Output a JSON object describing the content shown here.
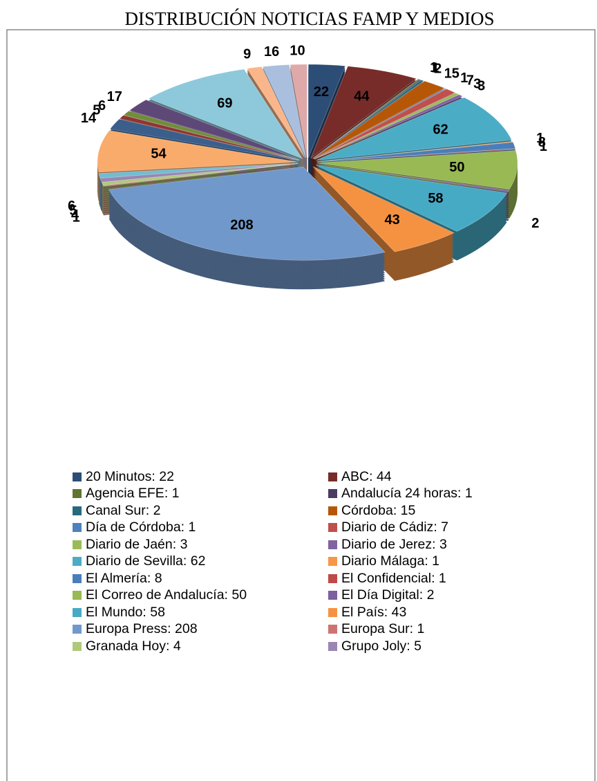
{
  "chart_data": {
    "type": "pie",
    "title": "DISTRIBUCIÓN NOTICIAS FAMP Y MEDIOS",
    "categories": [
      "20 Minutos",
      "ABC",
      "Agencia EFE",
      "Andalucía 24 horas",
      "Canal Sur",
      "Córdoba",
      "Día de Córdoba",
      "Diario de Cádiz",
      "Diario de Jaén",
      "Diario de Jerez",
      "Diario de Sevilla",
      "Diario Málaga",
      "El Almería",
      "El Confidencial",
      "El Correo de Andalucía",
      "El Día Digital",
      "El Mundo",
      "El País",
      "Europa Press",
      "Europa Sur",
      "Granada Hoy",
      "Grupo Joly",
      null,
      null,
      null,
      null,
      null,
      null,
      null,
      null,
      null,
      null
    ],
    "values": [
      22,
      44,
      1,
      1,
      2,
      15,
      1,
      7,
      3,
      3,
      62,
      1,
      8,
      1,
      50,
      2,
      58,
      43,
      208,
      1,
      4,
      5,
      6,
      54,
      14,
      5,
      6,
      17,
      69,
      9,
      16,
      10
    ],
    "colors": [
      "#2c4d75",
      "#772c2a",
      "#5f7530",
      "#4d3b62",
      "#276a7c",
      "#b65708",
      "#4f81bd",
      "#c0504d",
      "#9bbb59",
      "#8064a2",
      "#4bacc6",
      "#f79646",
      "#4a7ebb",
      "#be4b48",
      "#98b954",
      "#7d60a0",
      "#46aac5",
      "#f59242",
      "#7198cb",
      "#cd7472",
      "#afc97b",
      "#9a85b5",
      "#70bdd2",
      "#f9ab6c",
      "#3a5f8c",
      "#8f3533",
      "#728c3a",
      "#5e4878",
      "#8dc9da",
      "#fab68a",
      "#a9bfdd",
      "#dea9a8"
    ],
    "legend": true
  }
}
